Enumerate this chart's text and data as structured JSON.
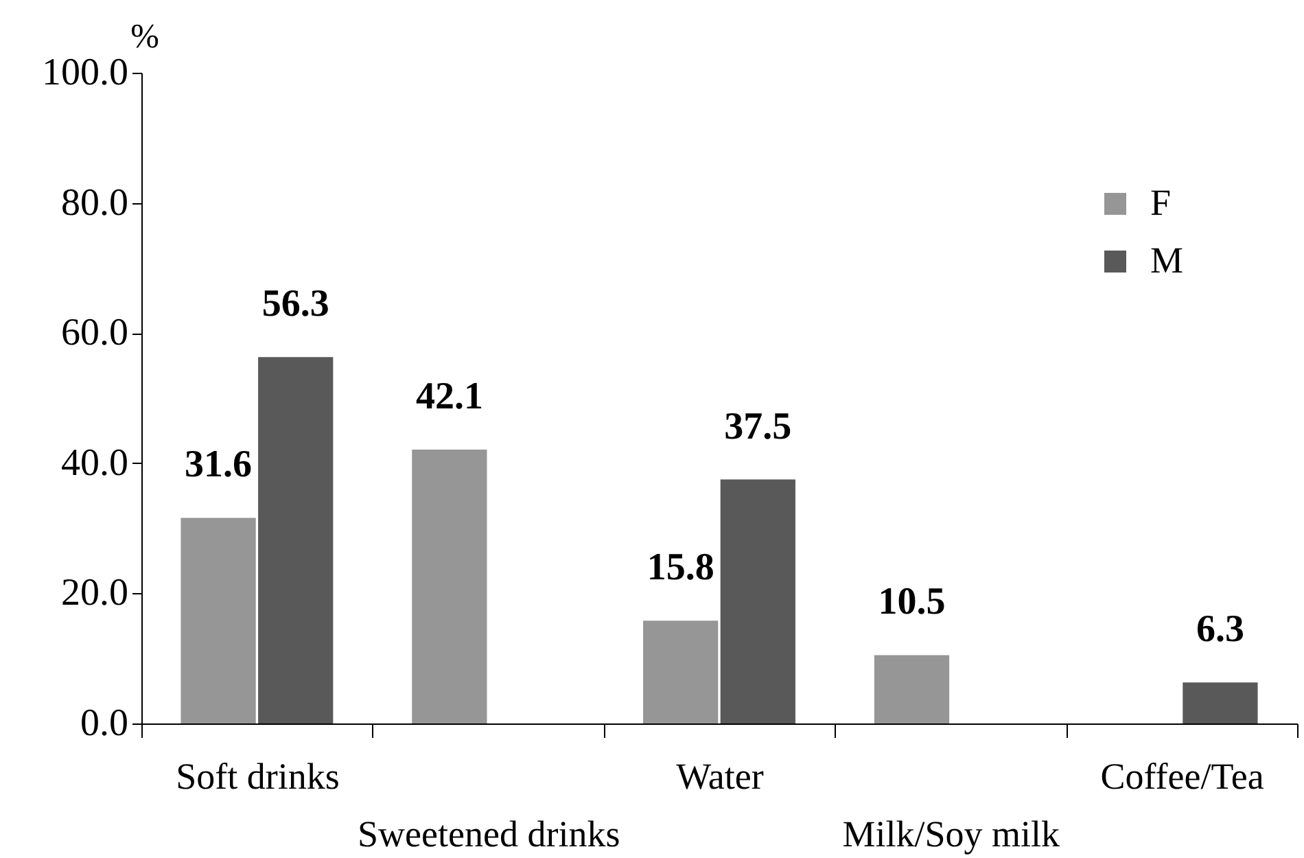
{
  "chart_data": {
    "type": "bar",
    "ylabel": "%",
    "categories": [
      "Soft drinks",
      "Sweetened drinks",
      "Water",
      "Milk/Soy milk",
      "Coffee/Tea"
    ],
    "series": [
      {
        "name": "F",
        "color": "#969696",
        "values": [
          31.6,
          42.1,
          15.8,
          10.5,
          null
        ]
      },
      {
        "name": "M",
        "color": "#595959",
        "values": [
          56.3,
          null,
          37.5,
          null,
          6.3
        ]
      }
    ],
    "ylim": [
      0,
      100
    ],
    "yticks": [
      {
        "value": 0,
        "label": "0.0"
      },
      {
        "value": 20,
        "label": "20.0"
      },
      {
        "value": 40,
        "label": "40.0"
      },
      {
        "value": 60,
        "label": "60.0"
      },
      {
        "value": 80,
        "label": "80.0"
      },
      {
        "value": 100,
        "label": "100.0"
      }
    ],
    "data_labels": true,
    "legend": "top right"
  }
}
